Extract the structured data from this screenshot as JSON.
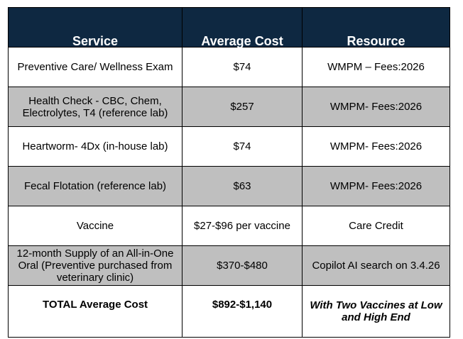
{
  "table": {
    "headers": [
      "Service",
      "Average Cost",
      "Resource"
    ],
    "rows": [
      {
        "service": "Preventive Care/ Wellness Exam",
        "cost": "$74",
        "resource": "WMPM – Fees:2026"
      },
      {
        "service": "Health Check - CBC, Chem, Electrolytes, T4 (reference lab)",
        "cost": "$257",
        "resource": "WMPM- Fees:2026"
      },
      {
        "service": "Heartworm- 4Dx (in-house lab)",
        "cost": "$74",
        "resource": "WMPM- Fees:2026"
      },
      {
        "service": "Fecal Flotation (reference lab)",
        "cost": "$63",
        "resource": "WMPM- Fees:2026"
      },
      {
        "service": "Vaccine",
        "cost": "$27-$96 per vaccine",
        "resource": "Care Credit"
      },
      {
        "service": "12-month Supply of an All-in-One Oral (Preventive purchased from veterinary clinic)",
        "cost": "$370-$480",
        "resource": "Copilot AI search on 3.4.26"
      }
    ],
    "total": {
      "label": "TOTAL Average Cost",
      "cost": "$892-$1,140",
      "note": "With Two Vaccines at Low and High End"
    }
  },
  "colors": {
    "header_background": "#0e2841",
    "header_text": "#ffffff",
    "shaded_row": "#bfbfbf"
  }
}
